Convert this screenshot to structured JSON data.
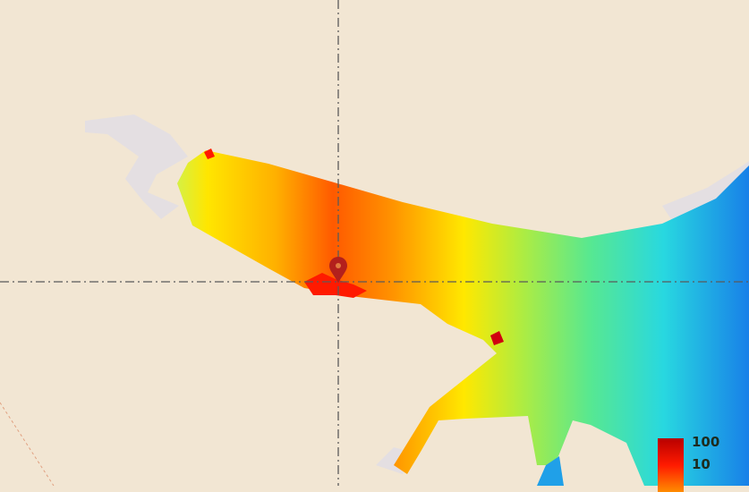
{
  "map": {
    "land_color": "#f2e6d3",
    "water_color": "#e4dfe2",
    "crosshair": true,
    "marker_icon": "map-pin-icon",
    "marker_color": "#b3201c"
  },
  "legend": {
    "labels": [
      "100",
      "10"
    ],
    "colors": [
      "#b80000",
      "#ff1a00",
      "#ff8c00"
    ]
  },
  "heatmap_colors": [
    "#ffe600",
    "#ff9a00",
    "#ff3000",
    "#ffe600",
    "#a8e84a",
    "#50e890",
    "#20d8e8",
    "#1060e0"
  ]
}
